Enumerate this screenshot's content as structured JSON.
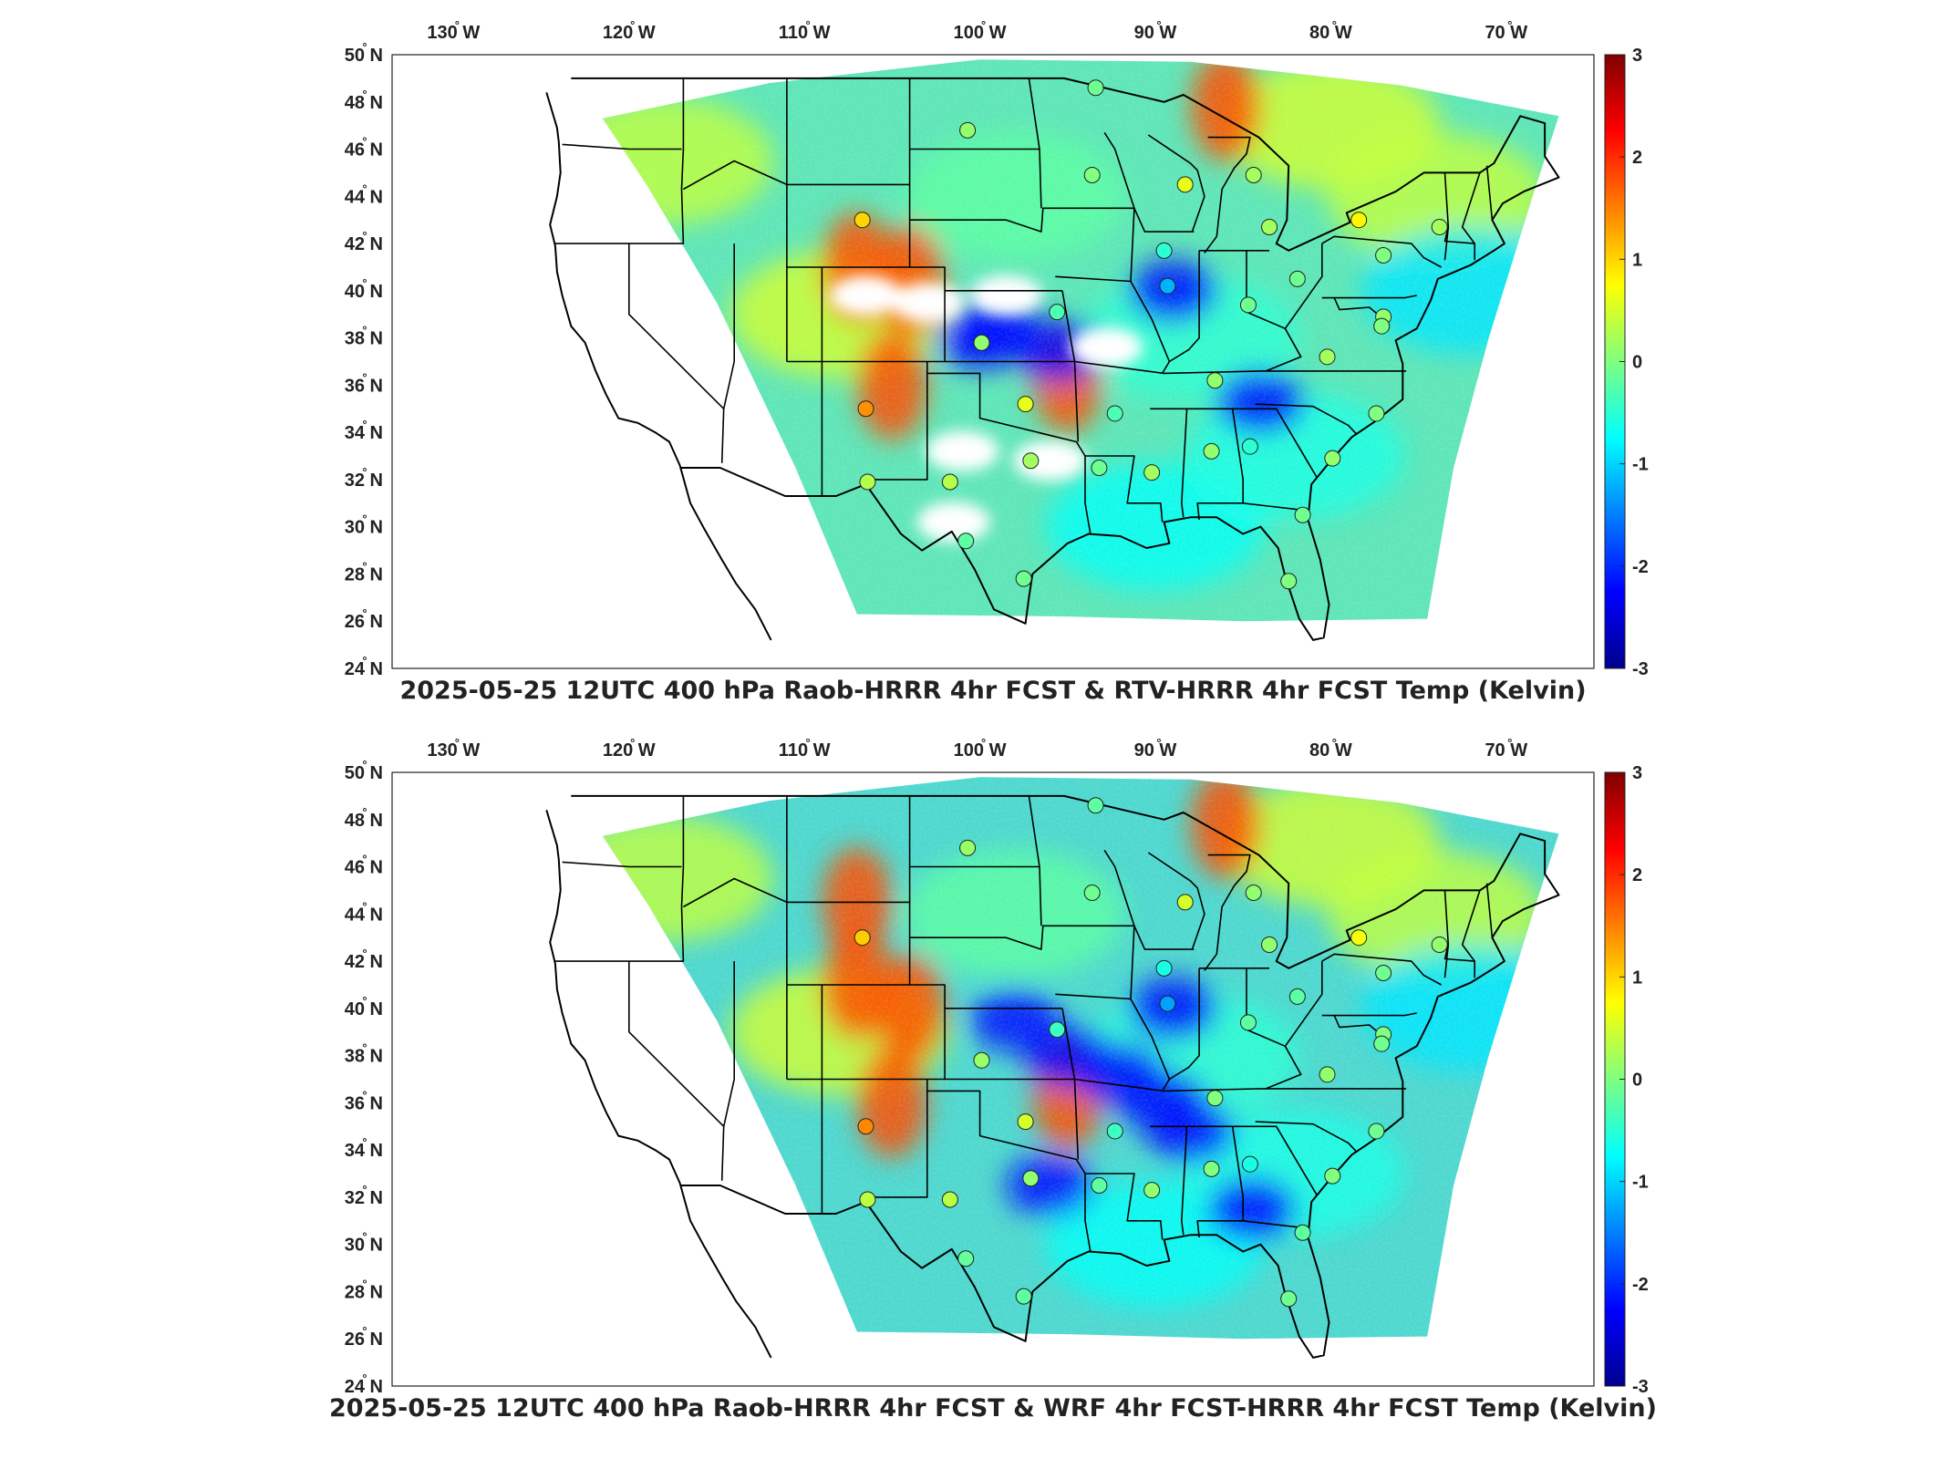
{
  "maps": [
    {
      "id": "top",
      "title": "2025-05-25 12UTC 400 hPa Raob-HRRR 4hr FCST & RTV-HRRR 4hr FCST Temp (Kelvin)",
      "obs": [
        {
          "lon": -96.5,
          "lat": 35.5,
          "value": 0.8
        },
        {
          "lon": -93.0,
          "lat": 33.5,
          "value": 0.2
        }
      ],
      "hot": [
        [
          -107,
          41
        ],
        [
          -104,
          40.5
        ],
        [
          -105,
          36
        ],
        [
          -95,
          36.3
        ],
        [
          -86,
          47.8
        ]
      ],
      "cold": [
        [
          -99,
          38.3
        ],
        [
          -95.5,
          37.5
        ],
        [
          -89,
          40
        ],
        [
          -84,
          35.3
        ],
        [
          -100,
          38
        ]
      ],
      "white": [
        [
          -106.5,
          39.8
        ],
        [
          -103,
          39.5
        ],
        [
          -98.5,
          39.8
        ],
        [
          -92.8,
          37.6
        ],
        [
          -101,
          33.2
        ],
        [
          -96,
          32.8
        ],
        [
          -101.5,
          30.2
        ]
      ]
    },
    {
      "id": "bottom",
      "title": "2025-05-25 12UTC 400 hPa Raob-HRRR 4hr FCST & WRF 4hr FCST-HRRR 4hr FCST Temp (Kelvin)",
      "hot": [
        [
          -107,
          41
        ],
        [
          -104,
          40
        ],
        [
          -105,
          36
        ],
        [
          -95,
          36.3
        ],
        [
          -86,
          47.8
        ],
        [
          -107,
          44.5
        ]
      ],
      "cold": [
        [
          -95,
          38
        ],
        [
          -98,
          39.5
        ],
        [
          -89,
          40
        ],
        [
          -89.5,
          36
        ],
        [
          -84.5,
          31.5
        ],
        [
          -96,
          32.5
        ],
        [
          -88,
          34.8
        ],
        [
          -92,
          37.2
        ]
      ],
      "white": []
    }
  ],
  "stations": [
    {
      "lon": -106.5,
      "lat": 35.0,
      "value": 1.4
    },
    {
      "lon": -106.7,
      "lat": 43.0,
      "value": 1.0
    },
    {
      "lon": -106.4,
      "lat": 31.9,
      "value": 0.3
    },
    {
      "lon": -101.7,
      "lat": 31.9,
      "value": 0.3
    },
    {
      "lon": -97.4,
      "lat": 35.2,
      "value": 0.6
    },
    {
      "lon": -97.1,
      "lat": 32.8,
      "value": 0.2
    },
    {
      "lon": -100.8,
      "lat": 29.4,
      "value": -0.2
    },
    {
      "lon": -97.5,
      "lat": 27.8,
      "value": -0.1
    },
    {
      "lon": -99.9,
      "lat": 37.8,
      "value": 0.1
    },
    {
      "lon": -95.6,
      "lat": 39.1,
      "value": -0.3
    },
    {
      "lon": -93.2,
      "lat": 32.5,
      "value": -0.1
    },
    {
      "lon": -92.3,
      "lat": 34.8,
      "value": -0.3
    },
    {
      "lon": -90.2,
      "lat": 32.3,
      "value": 0.2
    },
    {
      "lon": -89.3,
      "lat": 40.2,
      "value": -1.2
    },
    {
      "lon": -89.5,
      "lat": 41.7,
      "value": -0.5
    },
    {
      "lon": -88.3,
      "lat": 44.5,
      "value": 0.6
    },
    {
      "lon": -84.4,
      "lat": 44.9,
      "value": 0.2
    },
    {
      "lon": -83.5,
      "lat": 42.7,
      "value": 0.2
    },
    {
      "lon": -84.7,
      "lat": 39.4,
      "value": -0.1
    },
    {
      "lon": -86.6,
      "lat": 36.2,
      "value": 0.1
    },
    {
      "lon": -86.8,
      "lat": 33.2,
      "value": 0.1
    },
    {
      "lon": -84.6,
      "lat": 33.4,
      "value": -0.5
    },
    {
      "lon": -81.9,
      "lat": 40.5,
      "value": -0.1
    },
    {
      "lon": -78.4,
      "lat": 43.0,
      "value": 0.8
    },
    {
      "lon": -80.2,
      "lat": 37.2,
      "value": 0.2
    },
    {
      "lon": -77.0,
      "lat": 38.9,
      "value": 0.1
    },
    {
      "lon": -77.4,
      "lat": 34.8,
      "value": 0.0
    },
    {
      "lon": -79.9,
      "lat": 32.9,
      "value": 0.1
    },
    {
      "lon": -81.6,
      "lat": 30.5,
      "value": -0.1
    },
    {
      "lon": -82.4,
      "lat": 27.7,
      "value": 0.0
    },
    {
      "lon": -73.8,
      "lat": 42.7,
      "value": 0.2
    },
    {
      "lon": -77.1,
      "lat": 38.5,
      "value": 0.0
    },
    {
      "lon": -100.7,
      "lat": 46.8,
      "value": 0.1
    },
    {
      "lon": -93.6,
      "lat": 44.9,
      "value": 0.0
    },
    {
      "lon": -93.4,
      "lat": 48.6,
      "value": -0.1
    },
    {
      "lon": -77.0,
      "lat": 41.5,
      "value": 0.0
    }
  ],
  "lon_ticks": [
    "130",
    "120",
    "110",
    "100",
    "90",
    "80",
    "70"
  ],
  "lat_ticks": [
    "50",
    "48",
    "46",
    "44",
    "42",
    "40",
    "38",
    "36",
    "34",
    "32",
    "30",
    "28",
    "26",
    "24"
  ],
  "lon_suffix": "W",
  "lat_suffix": "N",
  "degree": "°",
  "colorbar_ticks": [
    "3",
    "2",
    "1",
    "0",
    "-1",
    "-2",
    "-3"
  ],
  "colorbar_range": [
    -3,
    3
  ]
}
